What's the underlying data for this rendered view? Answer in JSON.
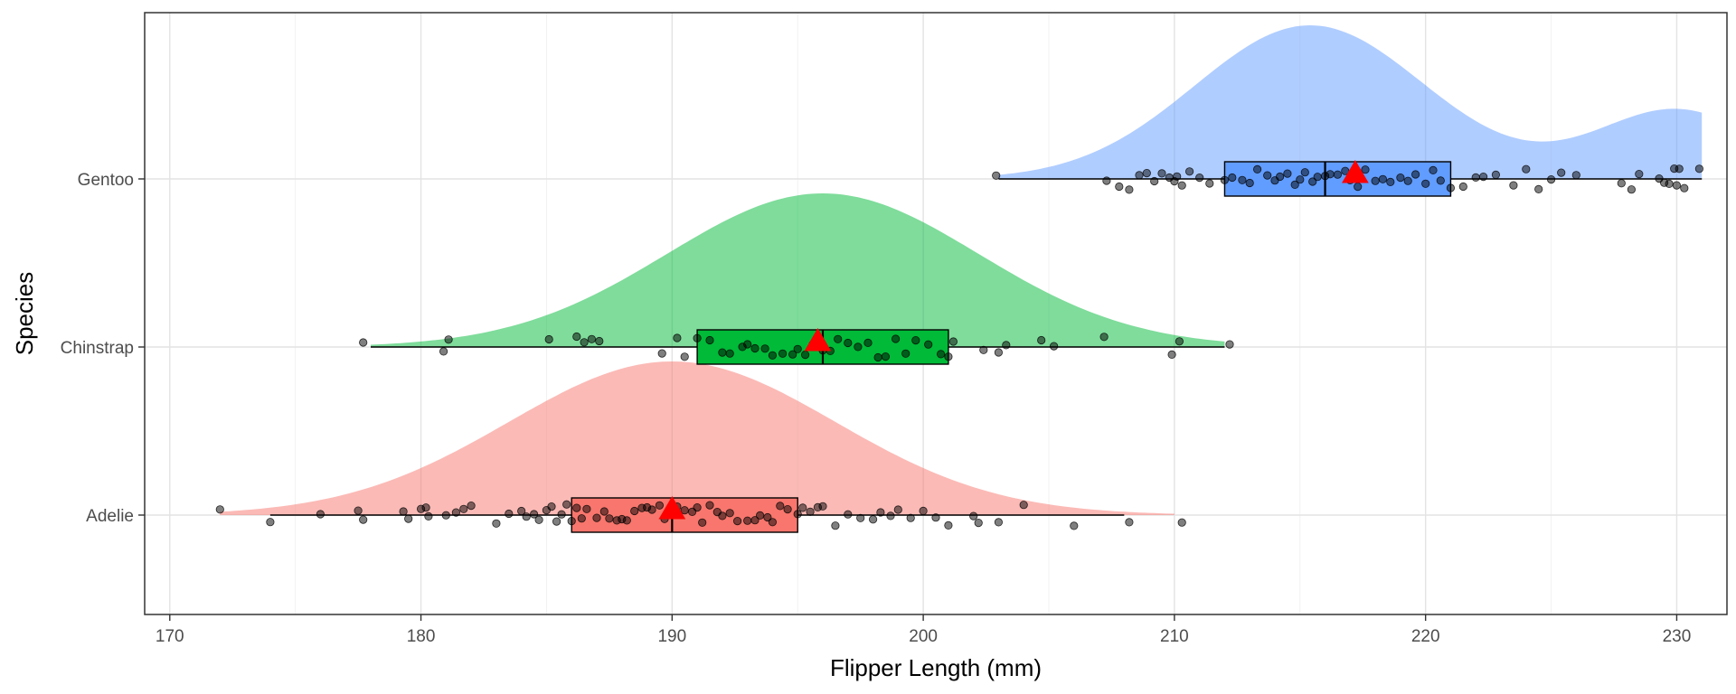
{
  "chart_data": {
    "type": "raincloud",
    "title": "",
    "xlabel": "Flipper Length (mm)",
    "ylabel": "Species",
    "xlim": [
      169,
      232
    ],
    "xticks": [
      170,
      180,
      190,
      200,
      210,
      220,
      230
    ],
    "grid": true,
    "legend": "none",
    "categories": [
      "Adelie",
      "Chinstrap",
      "Gentoo"
    ],
    "series": [
      {
        "name": "Adelie",
        "color": "#F8766D",
        "fill": "#F8766D",
        "range": [
          172,
          210
        ],
        "whisker": [
          174,
          208
        ],
        "box": {
          "q1": 186,
          "median": 190,
          "q3": 195
        },
        "mean": 190,
        "density": {
          "mean": 190,
          "sd": 6.5
        },
        "points": [
          172,
          174,
          176,
          177.5,
          177.7,
          179.3,
          179.5,
          180,
          180.2,
          180.3,
          181,
          181.4,
          181.7,
          182,
          183,
          183.5,
          184,
          184.2,
          184.5,
          184.7,
          185,
          185.2,
          185.4,
          185.6,
          185.8,
          186,
          186.2,
          186.4,
          186.6,
          187,
          187.3,
          187.5,
          187.8,
          188,
          188.2,
          188.5,
          188.8,
          189,
          189.2,
          189.5,
          189.7,
          190,
          190.2,
          190.5,
          190.8,
          191,
          191.2,
          191.5,
          191.8,
          192,
          192.3,
          192.6,
          193,
          193.3,
          193.5,
          193.8,
          194,
          194.3,
          194.6,
          195,
          195.2,
          195.5,
          195.8,
          196,
          196.5,
          197,
          197.5,
          198,
          198.3,
          198.7,
          199,
          199.5,
          200,
          200.5,
          201,
          202,
          202.2,
          203,
          204,
          206,
          208.2,
          210.3
        ]
      },
      {
        "name": "Chinstrap",
        "color": "#00BA38",
        "fill": "#00BA38",
        "range": [
          178,
          212
        ],
        "whisker": [
          178,
          212
        ],
        "box": {
          "q1": 191,
          "median": 196,
          "q3": 201
        },
        "mean": 195.8,
        "density": {
          "mean": 196,
          "sd": 6.2
        },
        "points": [
          177.7,
          180.9,
          181.1,
          185.1,
          186.2,
          186.5,
          186.8,
          187.1,
          189.6,
          190.2,
          190.5,
          191,
          191.5,
          192,
          192.3,
          192.8,
          193,
          193.3,
          193.7,
          194,
          194.4,
          194.8,
          195,
          195.3,
          195.6,
          196,
          196.3,
          196.6,
          197,
          197.4,
          197.8,
          198.2,
          198.5,
          198.9,
          199.3,
          199.7,
          200.2,
          200.7,
          201,
          201.2,
          202.4,
          203,
          203.3,
          204.7,
          205.2,
          207.2,
          209.9,
          210.2,
          212.2
        ]
      },
      {
        "name": "Gentoo",
        "color": "#619CFF",
        "fill": "#619CFF",
        "range": [
          203,
          231
        ],
        "whisker": [
          203,
          231
        ],
        "box": {
          "q1": 212,
          "median": 216,
          "q3": 221
        },
        "mean": 217.2,
        "density": {
          "mean": 215.4,
          "sd": 4.6
        },
        "points": [
          202.9,
          207.3,
          207.8,
          208.2,
          208.6,
          208.9,
          209.2,
          209.5,
          209.8,
          210,
          210.1,
          210.3,
          210.6,
          211,
          211.4,
          212,
          212.3,
          212.7,
          213,
          213.3,
          213.7,
          214,
          214.2,
          214.5,
          214.8,
          215,
          215.2,
          215.5,
          215.7,
          216,
          216.2,
          216.5,
          216.8,
          217,
          217.3,
          217.6,
          218,
          218.3,
          218.6,
          219,
          219.3,
          219.6,
          220,
          220.3,
          220.6,
          221,
          221.5,
          222,
          222.3,
          222.8,
          223.5,
          224,
          224.5,
          225,
          225.4,
          226,
          227.8,
          228.2,
          228.5,
          229.3,
          229.5,
          229.7,
          229.9,
          230,
          230.1,
          230.3,
          230.9
        ]
      }
    ]
  }
}
